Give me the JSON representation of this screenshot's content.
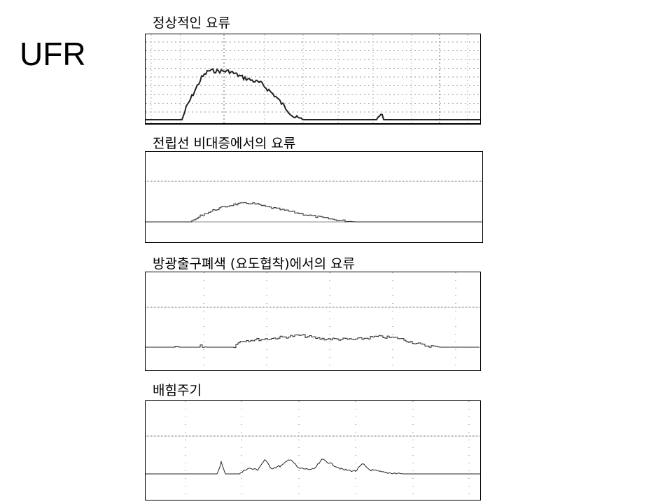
{
  "slide": {
    "title": "UFR",
    "panels": [
      {
        "label": "정상적인 요류"
      },
      {
        "label": "전립선 비대증에서의 요류"
      },
      {
        "label": "방광출구폐색 (요도협착)에서의 요류"
      },
      {
        "label": "배힘주기"
      }
    ]
  }
}
